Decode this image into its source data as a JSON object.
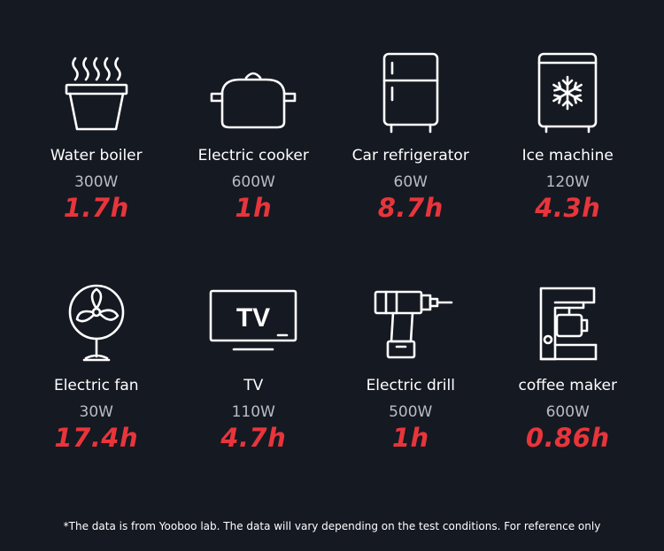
{
  "appliances": [
    {
      "name": "Water boiler",
      "power": "300W",
      "runtime": "1.7h",
      "icon": "water-boiler-icon"
    },
    {
      "name": "Electric cooker",
      "power": "600W",
      "runtime": "1h",
      "icon": "electric-cooker-icon"
    },
    {
      "name": "Car refrigerator",
      "power": "60W",
      "runtime": "8.7h",
      "icon": "car-refrigerator-icon"
    },
    {
      "name": "Ice machine",
      "power": "120W",
      "runtime": "4.3h",
      "icon": "ice-machine-icon"
    },
    {
      "name": "Electric fan",
      "power": "30W",
      "runtime": "17.4h",
      "icon": "electric-fan-icon"
    },
    {
      "name": "TV",
      "power": "110W",
      "runtime": "4.7h",
      "icon": "tv-icon",
      "icon_text": "TV"
    },
    {
      "name": "Electric drill",
      "power": "500W",
      "runtime": "1h",
      "icon": "electric-drill-icon"
    },
    {
      "name": "coffee maker",
      "power": "600W",
      "runtime": "0.86h",
      "icon": "coffee-maker-icon"
    }
  ],
  "footnote": "*The data is from Yooboo lab. The data will vary depending on the test conditions. For reference only",
  "colors": {
    "background": "#151922",
    "runtime": "#e8353b",
    "power": "#b9bcc3",
    "text": "#ffffff"
  }
}
